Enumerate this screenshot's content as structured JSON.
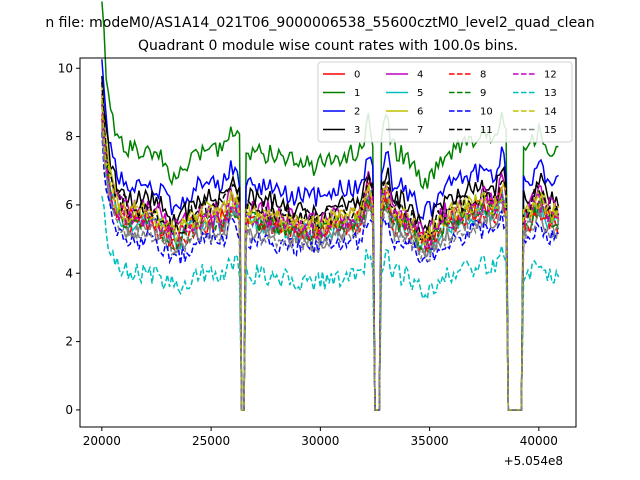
{
  "suptitle": "n file: modeM0/AS1A14_021T06_9000006538_55600cztM0_level2_quad_clean",
  "chart_data": {
    "type": "line",
    "title": "Quadrant 0 module wise count rates with 100.0s bins.",
    "xlabel": "",
    "ylabel": "",
    "x_offset_label": "+5.054e8",
    "xlim": [
      19000,
      41700
    ],
    "ylim": [
      -0.5,
      10.3
    ],
    "x_ticks": [
      20000,
      25000,
      30000,
      35000,
      40000
    ],
    "x_tick_labels": [
      "20000",
      "25000",
      "30000",
      "35000",
      "40000"
    ],
    "y_ticks": [
      0,
      2,
      4,
      6,
      8,
      10
    ],
    "y_tick_labels": [
      "0",
      "2",
      "4",
      "6",
      "8",
      "10"
    ],
    "legend": "top-right",
    "grid": false,
    "x_start": 20000,
    "x_step": 100,
    "x_end": 40900,
    "gaps": [
      [
        26400,
        26500
      ],
      [
        32500,
        32700
      ],
      [
        38600,
        39200
      ]
    ],
    "series": [
      {
        "name": "0",
        "color": "#ff0000",
        "dash": false,
        "base": 5.6
      },
      {
        "name": "1",
        "color": "#008000",
        "dash": false,
        "base": 7.6
      },
      {
        "name": "2",
        "color": "#0000ff",
        "dash": false,
        "base": 6.6
      },
      {
        "name": "3",
        "color": "#000000",
        "dash": false,
        "base": 6.2
      },
      {
        "name": "4",
        "color": "#bf00bf",
        "dash": false,
        "base": 5.9
      },
      {
        "name": "5",
        "color": "#00bfbf",
        "dash": false,
        "base": 5.5
      },
      {
        "name": "6",
        "color": "#bfbf00",
        "dash": false,
        "base": 5.8
      },
      {
        "name": "7",
        "color": "#808080",
        "dash": false,
        "base": 5.3
      },
      {
        "name": "8",
        "color": "#ff0000",
        "dash": true,
        "base": 5.4
      },
      {
        "name": "9",
        "color": "#008000",
        "dash": true,
        "base": 5.5
      },
      {
        "name": "10",
        "color": "#0000ff",
        "dash": true,
        "base": 5.0
      },
      {
        "name": "11",
        "color": "#000000",
        "dash": true,
        "base": 5.9
      },
      {
        "name": "12",
        "color": "#bf00bf",
        "dash": true,
        "base": 5.6
      },
      {
        "name": "13",
        "color": "#00bfbf",
        "dash": true,
        "base": 4.0
      },
      {
        "name": "14",
        "color": "#bfbf00",
        "dash": true,
        "base": 5.7
      },
      {
        "name": "15",
        "color": "#808080",
        "dash": true,
        "base": 5.2
      }
    ]
  }
}
